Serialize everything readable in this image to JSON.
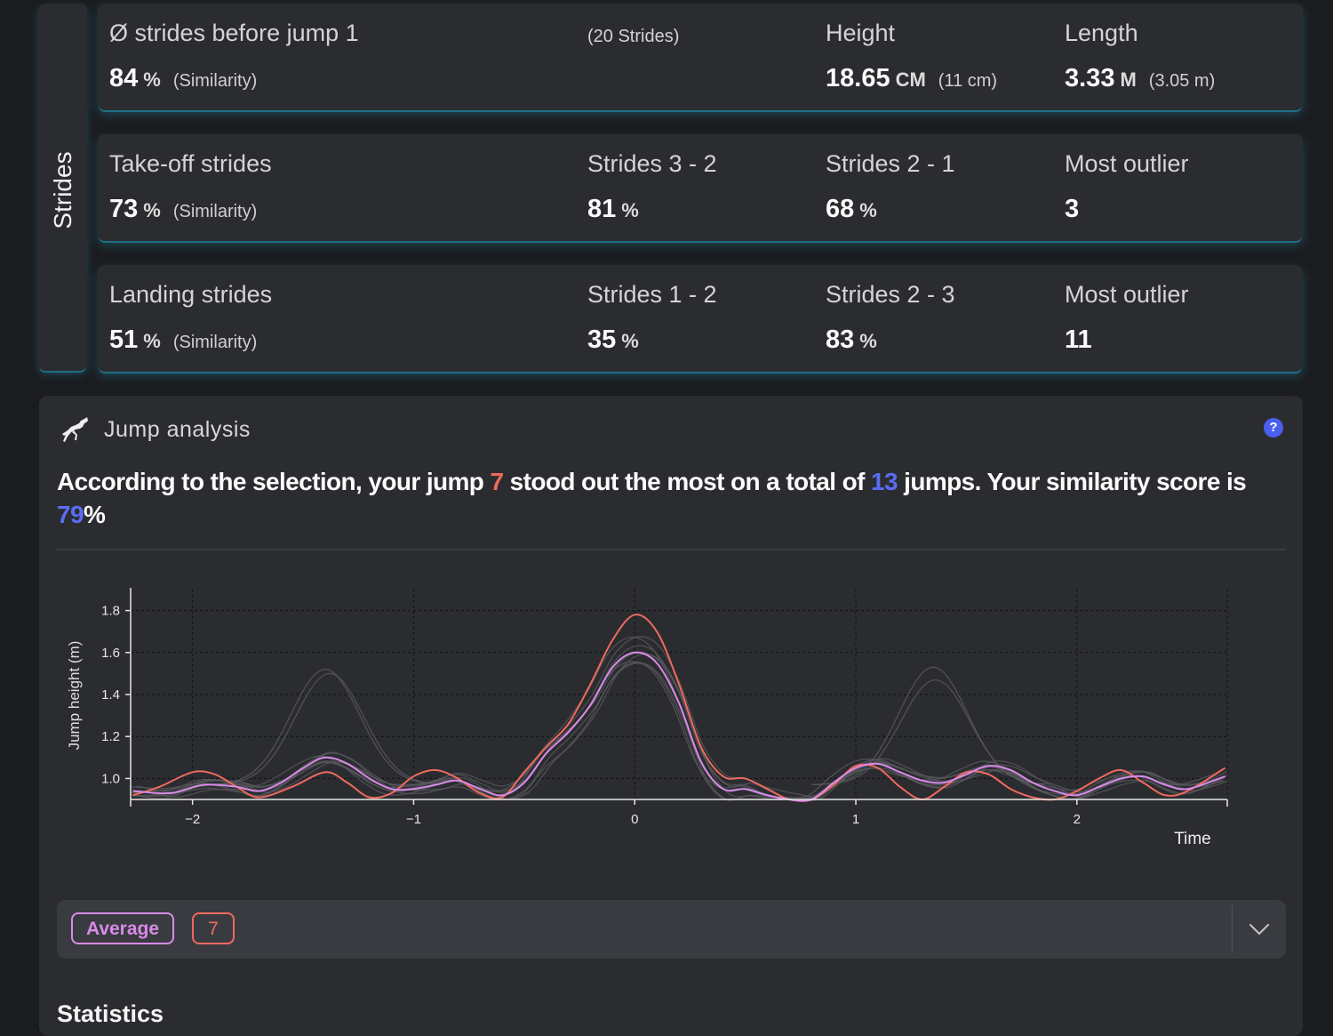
{
  "side_tab": {
    "label": "Strides"
  },
  "strides_before": {
    "label": "Ø strides before jump 1",
    "value": "84",
    "unit": "%",
    "note": "(Similarity)",
    "count": "(20 Strides)",
    "height_label": "Height",
    "height_value": "18.65",
    "height_unit": "CM",
    "height_note": "(11 cm)",
    "length_label": "Length",
    "length_value": "3.33",
    "length_unit": "M",
    "length_note": "(3.05 m)"
  },
  "takeoff": {
    "label": "Take-off strides",
    "value": "73",
    "unit": "%",
    "note": "(Similarity)",
    "c2_label": "Strides 3 - 2",
    "c2_value": "81",
    "c2_unit": "%",
    "c3_label": "Strides 2 - 1",
    "c3_value": "68",
    "c3_unit": "%",
    "c4_label": "Most outlier",
    "c4_value": "3"
  },
  "landing": {
    "label": "Landing strides",
    "value": "51",
    "unit": "%",
    "note": "(Similarity)",
    "c2_label": "Strides 1 - 2",
    "c2_value": "35",
    "c2_unit": "%",
    "c3_label": "Strides 2 - 3",
    "c3_value": "83",
    "c3_unit": "%",
    "c4_label": "Most outlier",
    "c4_value": "11"
  },
  "jump_analysis": {
    "title": "Jump analysis",
    "help": "?",
    "headline": {
      "p1": "According to the selection, your jump ",
      "jump": "7",
      "p2": " stood out the most on a total of ",
      "total": "13",
      "p3": " jumps. Your similarity score is ",
      "score": "79",
      "p4": "%"
    }
  },
  "selector": {
    "chip_average": "Average",
    "chip_jump": "7"
  },
  "statistics": {
    "title": "Statistics"
  },
  "colors": {
    "jump7": "#ef6a5e",
    "average": "#d98be8",
    "background_lines": "#57585d",
    "accent_blue": "#5a6cf2",
    "glow": "#1f6f85"
  },
  "chart_data": {
    "type": "line",
    "xlabel": "Time",
    "ylabel": "Jump height (m)",
    "xlim": [
      -2.28,
      2.68
    ],
    "ylim": [
      0.9,
      1.9
    ],
    "xticks": [
      -2,
      -1,
      0,
      1,
      2
    ],
    "xtick_labels": [
      "−2",
      "−1",
      "0",
      "1",
      "2"
    ],
    "yticks": [
      1.0,
      1.2,
      1.4,
      1.6,
      1.8
    ],
    "ytick_labels": [
      "1.0",
      "1.2",
      "1.4",
      "1.6",
      "1.8"
    ],
    "grid": true,
    "series": [
      {
        "name": "7",
        "x": [
          -2.27,
          -2.15,
          -2.0,
          -1.9,
          -1.8,
          -1.7,
          -1.55,
          -1.4,
          -1.3,
          -1.2,
          -1.1,
          -1.0,
          -0.9,
          -0.8,
          -0.7,
          -0.6,
          -0.5,
          -0.4,
          -0.3,
          -0.2,
          -0.1,
          0.0,
          0.1,
          0.2,
          0.3,
          0.4,
          0.5,
          0.6,
          0.7,
          0.8,
          0.9,
          1.0,
          1.1,
          1.2,
          1.3,
          1.4,
          1.5,
          1.6,
          1.7,
          1.8,
          1.9,
          2.0,
          2.1,
          2.2,
          2.3,
          2.4,
          2.5,
          2.67
        ],
        "y": [
          0.92,
          0.96,
          1.03,
          1.02,
          0.96,
          0.91,
          0.96,
          1.03,
          0.98,
          0.91,
          0.93,
          1.01,
          1.04,
          1.0,
          0.93,
          0.91,
          1.03,
          1.15,
          1.26,
          1.45,
          1.66,
          1.78,
          1.7,
          1.45,
          1.15,
          1.01,
          1.0,
          0.95,
          0.9,
          0.9,
          0.97,
          1.06,
          1.05,
          0.96,
          0.9,
          0.96,
          1.03,
          1.02,
          0.95,
          0.91,
          0.9,
          0.94,
          1.0,
          1.04,
          0.98,
          0.92,
          0.94,
          1.05
        ]
      },
      {
        "name": "Average",
        "x": [
          -2.27,
          -2.1,
          -1.95,
          -1.8,
          -1.7,
          -1.6,
          -1.5,
          -1.4,
          -1.3,
          -1.2,
          -1.1,
          -1.0,
          -0.9,
          -0.8,
          -0.7,
          -0.6,
          -0.5,
          -0.4,
          -0.3,
          -0.2,
          -0.1,
          0.0,
          0.1,
          0.2,
          0.3,
          0.4,
          0.5,
          0.6,
          0.7,
          0.8,
          0.9,
          1.0,
          1.1,
          1.2,
          1.3,
          1.4,
          1.5,
          1.6,
          1.7,
          1.8,
          1.9,
          2.0,
          2.1,
          2.2,
          2.3,
          2.4,
          2.5,
          2.67
        ],
        "y": [
          0.94,
          0.93,
          0.97,
          0.96,
          0.94,
          0.98,
          1.05,
          1.1,
          1.07,
          1.0,
          0.95,
          0.95,
          0.97,
          0.99,
          0.95,
          0.92,
          0.98,
          1.12,
          1.22,
          1.35,
          1.53,
          1.6,
          1.55,
          1.36,
          1.08,
          0.95,
          0.95,
          0.92,
          0.9,
          0.9,
          0.98,
          1.05,
          1.07,
          1.03,
          0.99,
          0.98,
          1.02,
          1.06,
          1.04,
          0.98,
          0.94,
          0.92,
          0.96,
          1.0,
          1.01,
          0.97,
          0.95,
          1.01
        ]
      }
    ]
  }
}
